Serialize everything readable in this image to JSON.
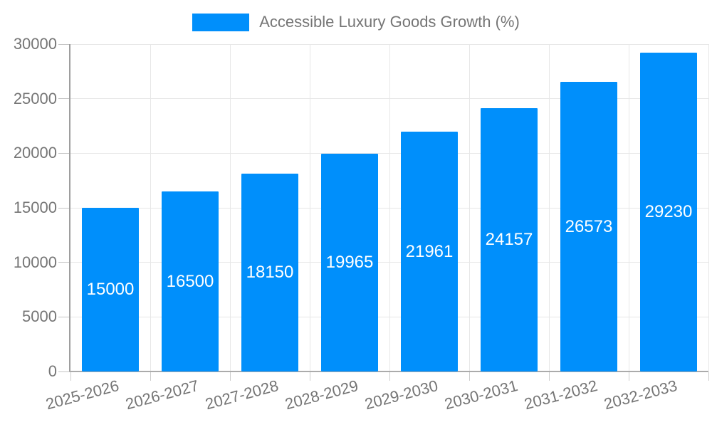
{
  "legend": {
    "label": "Accessible Luxury Goods Growth (%)",
    "swatch_color": "#008FFB"
  },
  "chart_data": {
    "type": "bar",
    "title": "",
    "categories": [
      "2025-2026",
      "2026-2027",
      "2027-2028",
      "2028-2029",
      "2029-2030",
      "2030-2031",
      "2031-2032",
      "2032-2033"
    ],
    "series": [
      {
        "name": "Accessible Luxury Goods Growth (%)",
        "values": [
          15000,
          16500,
          18150,
          19965,
          21961,
          24157,
          26573,
          29230
        ]
      }
    ],
    "data_labels": [
      "15000",
      "16500",
      "18150",
      "19965",
      "21961",
      "24157",
      "26573",
      "29230"
    ],
    "xlabel": "",
    "ylabel": "",
    "ylim": [
      0,
      30000
    ],
    "yticks": [
      0,
      5000,
      10000,
      15000,
      20000,
      25000,
      30000
    ],
    "ytick_labels": [
      "0",
      "5000",
      "10000",
      "15000",
      "20000",
      "25000",
      "30000"
    ],
    "grid": true,
    "legend_position": "top",
    "colors": {
      "bar": "#008FFB",
      "data_label": "#ffffff",
      "axis_label": "#757575",
      "gridline": "#e7e7e7",
      "y_axis_line": "#9e9e9e",
      "x_axis_line": "#ababab"
    }
  }
}
